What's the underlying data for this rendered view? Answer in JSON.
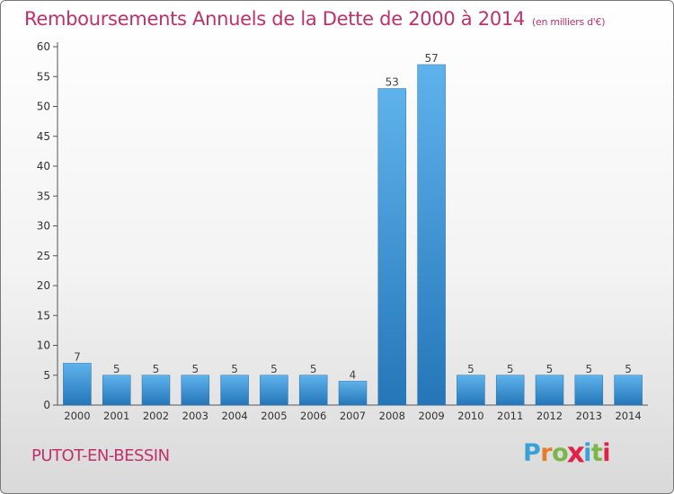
{
  "title": "Remboursements Annuels de la Dette de 2000 à 2014",
  "subtitle": "(en milliers d'€)",
  "commune": "PUTOT-EN-BESSIN",
  "logo": {
    "letters": [
      "P",
      "r",
      "o",
      "x",
      "i",
      "t",
      "i"
    ],
    "colors": [
      "#3aa0d8",
      "#e37d2a",
      "#7ab648",
      "#e0224a",
      "#3aa0d8",
      "#7ab648",
      "#e0224a"
    ]
  },
  "colors": {
    "bar": "#3d92d6",
    "title": "#c0306a"
  },
  "chart_data": {
    "type": "bar",
    "title": "Remboursements Annuels de la Dette de 2000 à 2014",
    "subtitle": "(en milliers d'€)",
    "xlabel": "",
    "ylabel": "",
    "categories": [
      "2000",
      "2001",
      "2002",
      "2003",
      "2004",
      "2005",
      "2006",
      "2007",
      "2008",
      "2009",
      "2010",
      "2011",
      "2012",
      "2013",
      "2014"
    ],
    "values": [
      7,
      5,
      5,
      5,
      5,
      5,
      5,
      4,
      53,
      57,
      5,
      5,
      5,
      5,
      5
    ],
    "data_labels": [
      "7",
      "5",
      "5",
      "5",
      "5",
      "5",
      "5",
      "4",
      "53",
      "57",
      "5",
      "5",
      "5",
      "5",
      "5"
    ],
    "ylim": [
      0,
      60
    ],
    "yticks": [
      0,
      5,
      10,
      15,
      20,
      25,
      30,
      35,
      40,
      45,
      50,
      55,
      60
    ],
    "grid": false,
    "legend": "none"
  }
}
